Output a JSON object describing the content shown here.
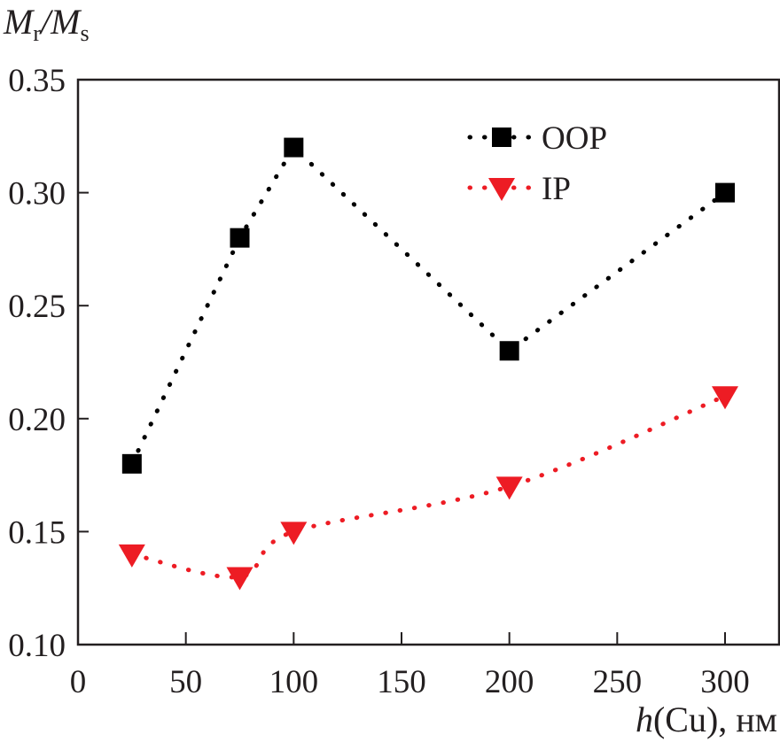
{
  "chart_data": {
    "type": "scatter",
    "title": "",
    "ylabel": {
      "main": "M",
      "sub1": "r",
      "sep": "/",
      "main2": "M",
      "sub2": "s"
    },
    "xlabel": {
      "italic": "h",
      "rest": "(Cu), нм"
    },
    "xlim": [
      0,
      325
    ],
    "ylim": [
      0.1,
      0.35
    ],
    "xticks": [
      0,
      50,
      100,
      150,
      200,
      250,
      300
    ],
    "xtick_labels": [
      "0",
      "50",
      "100",
      "150",
      "200",
      "250",
      "300"
    ],
    "yticks": [
      0.1,
      0.15,
      0.2,
      0.25,
      0.3,
      0.35
    ],
    "ytick_labels": [
      "0.10",
      "0.15",
      "0.20",
      "0.25",
      "0.30",
      "0.35"
    ],
    "grid": false,
    "legend_position": "top-right",
    "series": [
      {
        "name": "OOP",
        "marker": "square",
        "color": "#000000",
        "line": "dotted",
        "x": [
          25,
          75,
          100,
          200,
          300
        ],
        "y": [
          0.18,
          0.28,
          0.32,
          0.23,
          0.3
        ]
      },
      {
        "name": "IP",
        "marker": "triangle-down",
        "color": "#ed1c24",
        "line": "dotted",
        "x": [
          25,
          75,
          100,
          200,
          300
        ],
        "y": [
          0.14,
          0.13,
          0.15,
          0.17,
          0.21
        ]
      }
    ]
  }
}
